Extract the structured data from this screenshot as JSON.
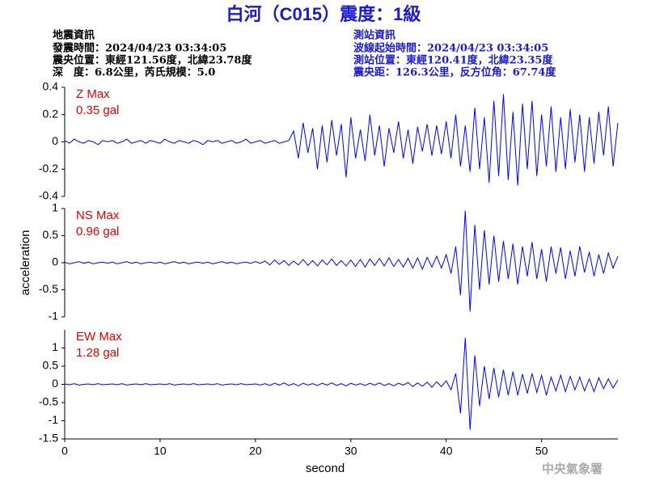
{
  "header": {
    "title": "白河（C015）震度：1級",
    "left": [
      "地震資訊",
      "發震時間：2024/04/23 03:34:05",
      "震央位置：東經121.56度，北緯23.78度",
      "深　度：6.8公里，芮氏規模：5.0"
    ],
    "right": [
      "測站資訊",
      "波線起始時間：2024/04/23 03:34:05",
      "測站位置：東經120.41度，北緯23.35度",
      "震央距：126.3公里，反方位角：67.74度"
    ],
    "footer": "中央氣象署"
  },
  "chart_data": [
    {
      "type": "line",
      "annotations": [
        "Z Max",
        "0.35 gal"
      ],
      "annotation_color": "#e00000",
      "xlim": [
        0,
        58
      ],
      "ylim": [
        -0.4,
        0.4
      ],
      "yticks": [
        -0.4,
        -0.2,
        0,
        0.2,
        0.4
      ],
      "x": [
        0,
        0.5,
        1,
        1.5,
        2,
        2.5,
        3,
        3.5,
        4,
        4.5,
        5,
        5.5,
        6,
        6.5,
        7,
        7.5,
        8,
        8.5,
        9,
        9.5,
        10,
        10.5,
        11,
        11.5,
        12,
        12.5,
        13,
        13.5,
        14,
        14.5,
        15,
        15.5,
        16,
        16.5,
        17,
        17.5,
        18,
        18.5,
        19,
        19.5,
        20,
        20.5,
        21,
        21.5,
        22,
        22.5,
        23,
        23.5,
        24,
        24.5,
        25,
        25.5,
        26,
        26.5,
        27,
        27.5,
        28,
        28.5,
        29,
        29.5,
        30,
        30.5,
        31,
        31.5,
        32,
        32.5,
        33,
        33.5,
        34,
        34.5,
        35,
        35.5,
        36,
        36.5,
        37,
        37.5,
        38,
        38.5,
        39,
        39.5,
        40,
        40.5,
        41,
        41.5,
        42,
        42.5,
        43,
        43.5,
        44,
        44.5,
        45,
        45.5,
        46,
        46.5,
        47,
        47.5,
        48,
        48.5,
        49,
        49.5,
        50,
        50.5,
        51,
        51.5,
        52,
        52.5,
        53,
        53.5,
        54,
        54.5,
        55,
        55.5,
        56,
        56.5,
        57,
        57.5,
        58
      ],
      "series": [
        {
          "color": "#0000ff",
          "values": [
            0.01,
            -0.01,
            0.02,
            0,
            -0.01,
            0.01,
            0,
            -0.02,
            0.01,
            0,
            0.01,
            -0.01,
            0,
            0.02,
            -0.01,
            0,
            0.01,
            -0.01,
            0.01,
            0,
            -0.01,
            0.02,
            0,
            -0.01,
            0.01,
            0,
            -0.01,
            0.01,
            0,
            -0.02,
            0.01,
            0,
            0.01,
            -0.01,
            0,
            0.01,
            -0.01,
            0,
            0.02,
            -0.01,
            0,
            0.01,
            -0.01,
            0,
            0.01,
            -0.01,
            0,
            0.01,
            0.08,
            -0.12,
            0.14,
            -0.08,
            0.1,
            -0.2,
            0.12,
            -0.15,
            0.16,
            -0.1,
            0.13,
            -0.26,
            0.18,
            -0.12,
            0.09,
            -0.14,
            0.2,
            -0.1,
            0.12,
            -0.18,
            0.1,
            -0.08,
            0.15,
            -0.12,
            0.09,
            -0.16,
            0.11,
            -0.07,
            0.13,
            -0.1,
            0.12,
            -0.09,
            0.15,
            -0.12,
            0.2,
            -0.18,
            0.12,
            -0.22,
            0.25,
            -0.2,
            0.18,
            -0.3,
            0.3,
            -0.25,
            0.35,
            -0.28,
            0.22,
            -0.32,
            0.28,
            -0.2,
            0.3,
            -0.25,
            0.2,
            -0.18,
            0.26,
            -0.22,
            0.18,
            -0.2,
            0.24,
            -0.15,
            0.2,
            -0.22,
            0.18,
            -0.16,
            0.22,
            -0.1,
            0.26,
            -0.18,
            0.14
          ]
        }
      ]
    },
    {
      "type": "line",
      "annotations": [
        "NS Max",
        "0.96 gal"
      ],
      "annotation_color": "#e00000",
      "ylabel": "acceleration",
      "xlim": [
        0,
        58
      ],
      "ylim": [
        -1,
        1
      ],
      "yticks": [
        -1,
        -0.5,
        0,
        0.5,
        1
      ],
      "x": [
        0,
        0.5,
        1,
        1.5,
        2,
        2.5,
        3,
        3.5,
        4,
        4.5,
        5,
        5.5,
        6,
        6.5,
        7,
        7.5,
        8,
        8.5,
        9,
        9.5,
        10,
        10.5,
        11,
        11.5,
        12,
        12.5,
        13,
        13.5,
        14,
        14.5,
        15,
        15.5,
        16,
        16.5,
        17,
        17.5,
        18,
        18.5,
        19,
        19.5,
        20,
        20.5,
        21,
        21.5,
        22,
        22.5,
        23,
        23.5,
        24,
        24.5,
        25,
        25.5,
        26,
        26.5,
        27,
        27.5,
        28,
        28.5,
        29,
        29.5,
        30,
        30.5,
        31,
        31.5,
        32,
        32.5,
        33,
        33.5,
        34,
        34.5,
        35,
        35.5,
        36,
        36.5,
        37,
        37.5,
        38,
        38.5,
        39,
        39.5,
        40,
        40.5,
        41,
        41.5,
        42,
        42.5,
        43,
        43.5,
        44,
        44.5,
        45,
        45.5,
        46,
        46.5,
        47,
        47.5,
        48,
        48.5,
        49,
        49.5,
        50,
        50.5,
        51,
        51.5,
        52,
        52.5,
        53,
        53.5,
        54,
        54.5,
        55,
        55.5,
        56,
        56.5,
        57,
        57.5,
        58
      ],
      "series": [
        {
          "color": "#0000ff",
          "values": [
            0.01,
            -0.02,
            0,
            0.02,
            -0.01,
            0.01,
            -0.02,
            0,
            0.01,
            -0.01,
            0.01,
            -0.02,
            0,
            0.02,
            -0.01,
            0.01,
            -0.02,
            0,
            0.01,
            -0.01,
            0.01,
            -0.02,
            0,
            0.02,
            -0.01,
            0.01,
            -0.02,
            0,
            0.01,
            -0.01,
            0.01,
            -0.02,
            0,
            0.02,
            -0.01,
            0.01,
            -0.02,
            0,
            0.01,
            -0.01,
            0.02,
            -0.01,
            0.03,
            -0.04,
            0.05,
            -0.03,
            0.04,
            -0.05,
            0.03,
            -0.04,
            0.06,
            -0.05,
            0.04,
            -0.06,
            0.05,
            -0.04,
            0.07,
            -0.05,
            0.04,
            -0.06,
            0.05,
            -0.07,
            0.06,
            -0.08,
            0.07,
            -0.05,
            0.08,
            -0.06,
            0.09,
            -0.07,
            0.06,
            -0.08,
            0.08,
            -0.1,
            0.09,
            -0.12,
            0.1,
            -0.08,
            0.12,
            -0.1,
            0.15,
            -0.2,
            0.3,
            -0.6,
            0.96,
            -0.9,
            0.7,
            -0.5,
            0.6,
            -0.4,
            0.5,
            -0.35,
            0.4,
            -0.3,
            0.35,
            -0.4,
            0.3,
            -0.25,
            0.38,
            -0.3,
            0.25,
            -0.35,
            0.3,
            -0.2,
            0.28,
            -0.3,
            0.22,
            -0.25,
            0.3,
            -0.18,
            0.2,
            -0.25,
            0.15,
            -0.2,
            0.18,
            -0.1,
            0.12
          ]
        }
      ]
    },
    {
      "type": "line",
      "annotations": [
        "EW Max",
        "1.28 gal"
      ],
      "annotation_color": "#e00000",
      "xlabel": "second",
      "xlim": [
        0,
        58
      ],
      "ylim": [
        -1.5,
        1.5
      ],
      "yticks": [
        -1.5,
        -1,
        -0.5,
        0,
        0.5,
        1
      ],
      "xticks": [
        0,
        10,
        20,
        30,
        40,
        50
      ],
      "x": [
        0,
        0.5,
        1,
        1.5,
        2,
        2.5,
        3,
        3.5,
        4,
        4.5,
        5,
        5.5,
        6,
        6.5,
        7,
        7.5,
        8,
        8.5,
        9,
        9.5,
        10,
        10.5,
        11,
        11.5,
        12,
        12.5,
        13,
        13.5,
        14,
        14.5,
        15,
        15.5,
        16,
        16.5,
        17,
        17.5,
        18,
        18.5,
        19,
        19.5,
        20,
        20.5,
        21,
        21.5,
        22,
        22.5,
        23,
        23.5,
        24,
        24.5,
        25,
        25.5,
        26,
        26.5,
        27,
        27.5,
        28,
        28.5,
        29,
        29.5,
        30,
        30.5,
        31,
        31.5,
        32,
        32.5,
        33,
        33.5,
        34,
        34.5,
        35,
        35.5,
        36,
        36.5,
        37,
        37.5,
        38,
        38.5,
        39,
        39.5,
        40,
        40.5,
        41,
        41.5,
        42,
        42.5,
        43,
        43.5,
        44,
        44.5,
        45,
        45.5,
        46,
        46.5,
        47,
        47.5,
        48,
        48.5,
        49,
        49.5,
        50,
        50.5,
        51,
        51.5,
        52,
        52.5,
        53,
        53.5,
        54,
        54.5,
        55,
        55.5,
        56,
        56.5,
        57,
        57.5,
        58
      ],
      "series": [
        {
          "color": "#0000ff",
          "values": [
            0.01,
            -0.01,
            0.02,
            -0.02,
            0,
            0.01,
            -0.01,
            0.02,
            -0.01,
            0,
            0.01,
            -0.01,
            0.02,
            -0.02,
            0,
            0.01,
            -0.01,
            0.02,
            -0.01,
            0,
            0.01,
            -0.01,
            0.02,
            -0.02,
            0,
            0.01,
            -0.01,
            0.02,
            -0.01,
            0,
            0.01,
            -0.01,
            0.02,
            -0.02,
            0,
            0.01,
            -0.01,
            0.02,
            -0.01,
            0,
            0.01,
            -0.02,
            0.02,
            -0.03,
            0.03,
            -0.02,
            0.04,
            -0.03,
            0.02,
            -0.04,
            0.03,
            -0.02,
            0.02,
            -0.03,
            0.03,
            -0.02,
            0.04,
            -0.03,
            0.02,
            -0.04,
            0.03,
            -0.02,
            0.02,
            -0.03,
            0.03,
            -0.02,
            0.04,
            -0.03,
            0.02,
            -0.04,
            0.03,
            -0.02,
            0.05,
            -0.06,
            0.04,
            -0.05,
            0.06,
            -0.08,
            0.07,
            -0.06,
            0.1,
            -0.15,
            0.3,
            -0.8,
            1.28,
            -1.25,
            0.8,
            -0.6,
            0.5,
            -0.4,
            0.45,
            -0.35,
            0.4,
            -0.3,
            0.35,
            -0.3,
            0.28,
            -0.25,
            0.3,
            -0.22,
            0.25,
            -0.3,
            0.2,
            -0.18,
            0.25,
            -0.2,
            0.22,
            -0.15,
            0.2,
            -0.18,
            0.15,
            -0.2,
            0.18,
            -0.12,
            0.15,
            -0.1,
            0.12
          ]
        }
      ]
    }
  ]
}
